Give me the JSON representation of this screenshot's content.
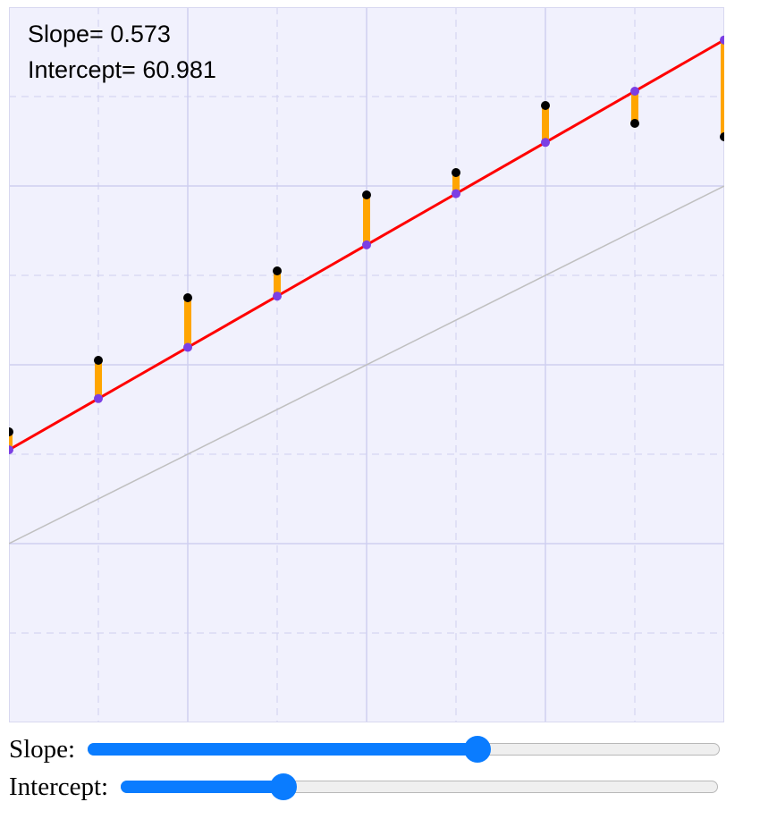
{
  "readout": {
    "slope_label": "Slope= 0.573",
    "intercept_label": "Intercept= 60.981"
  },
  "controls": {
    "slope_label": "Slope:",
    "intercept_label": "Intercept:",
    "slope_fraction": 0.62,
    "intercept_fraction": 0.26
  },
  "chart_data": {
    "type": "scatter",
    "title": "",
    "xlabel": "",
    "ylabel": "",
    "xlim": [
      0,
      160
    ],
    "ylim": [
      0,
      160
    ],
    "grid": true,
    "x": [
      0,
      20,
      40,
      60,
      80,
      100,
      120,
      140,
      160
    ],
    "y": [
      65,
      81,
      95,
      101,
      118,
      123,
      138,
      134,
      131
    ],
    "fit_line": {
      "slope": 0.573,
      "intercept": 60.981,
      "color": "#ff0000"
    },
    "reference_line": {
      "slope": 0.5,
      "intercept": 40,
      "color": "#c0c0c0"
    },
    "residual_color": "#ffa500",
    "point_color": "#000000",
    "fit_point_color": "#7b3fe4",
    "plot_background": "#f1f1fd"
  }
}
